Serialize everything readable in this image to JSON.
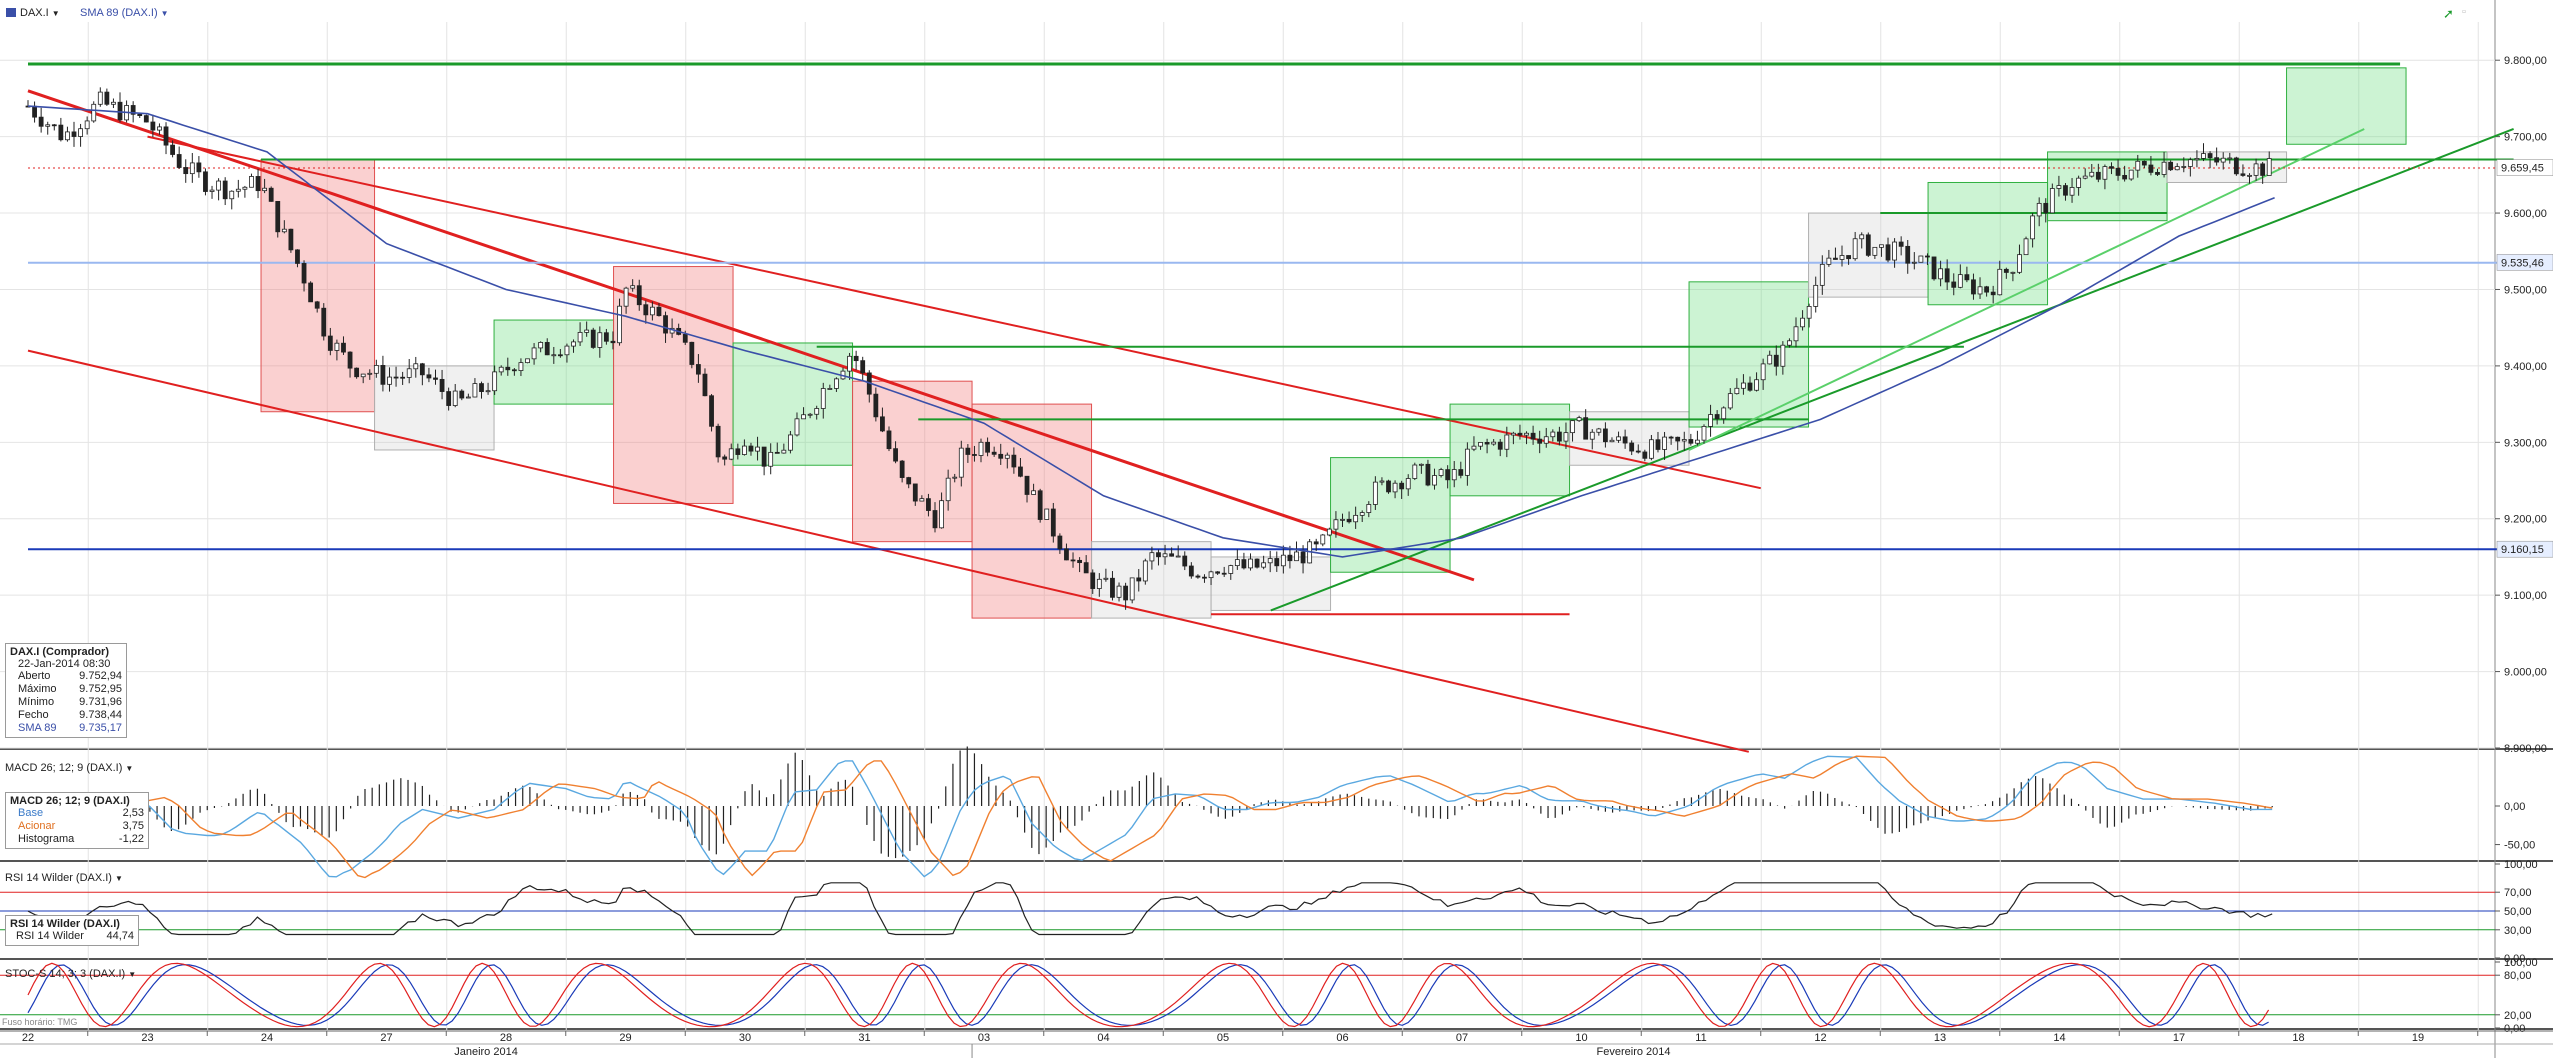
{
  "header": {
    "symbol": "DAX.I",
    "indicator": "SMA 89 (DAX.I)"
  },
  "panels": {
    "macd_title": "MACD 26; 12; 9 (DAX.I)",
    "rsi_title": "RSI 14 Wilder (DAX.I)",
    "stoch_title": "STOC-S 14; 3; 3 (DAX.I)"
  },
  "timezone_note": "Fuso horário: TMG",
  "info_main": {
    "title": "DAX.I (Comprador)",
    "date": "22-Jan-2014 08:30",
    "rows": [
      {
        "k": "Aberto",
        "v": "9.752,94"
      },
      {
        "k": "Máximo",
        "v": "9.752,95"
      },
      {
        "k": "Mínimo",
        "v": "9.731,96"
      },
      {
        "k": "Fecho",
        "v": "9.738,44"
      },
      {
        "k": "SMA 89",
        "v": "9.735,17"
      }
    ]
  },
  "info_macd": {
    "title": "MACD 26; 12; 9 (DAX.I)",
    "rows": [
      {
        "k": "Base",
        "v": "2,53"
      },
      {
        "k": "Acionar",
        "v": "3,75"
      },
      {
        "k": "Histograma",
        "v": "-1,22"
      }
    ]
  },
  "info_rsi": {
    "title": "RSI 14 Wilder (DAX.I)",
    "rows": [
      {
        "k": "RSI 14 Wilder",
        "v": "44,74"
      }
    ]
  },
  "colors": {
    "price_up": "#2a2a2a",
    "sma": "#3a4fa8",
    "red_line": "#e02020",
    "green_line": "#1a9a2a",
    "blue_line": "#1a3ab8",
    "light_blue": "#9ab8f0",
    "macd_base": "#5aa8e0",
    "macd_signal": "#f08030",
    "stoch_k": "#e02020",
    "stoch_d": "#1a3ab8"
  },
  "chart_data": {
    "type": "candlestick",
    "x_days": [
      "22",
      "23",
      "24",
      "27",
      "28",
      "29",
      "30",
      "31",
      "03",
      "04",
      "05",
      "06",
      "07",
      "10",
      "11",
      "12",
      "13",
      "14",
      "17",
      "18",
      "19"
    ],
    "x_months": [
      "Janeiro 2014",
      "Fevereiro 2014"
    ],
    "y_ticks": [
      "9.800,00",
      "9.700,00",
      "9.600,00",
      "9.500,00",
      "9.400,00",
      "9.300,00",
      "9.200,00",
      "9.100,00",
      "9.000,00",
      "8.900,00"
    ],
    "ylim": [
      8900,
      9850
    ],
    "last_price_label": "9.659,45",
    "level_labels": [
      "9.535,46",
      "9.160,15"
    ],
    "close_path": [
      [
        0,
        9740
      ],
      [
        0.3,
        9700
      ],
      [
        0.6,
        9745
      ],
      [
        0.9,
        9725
      ],
      [
        1.0,
        9720
      ],
      [
        1.3,
        9660
      ],
      [
        1.5,
        9640
      ],
      [
        1.7,
        9630
      ],
      [
        1.95,
        9640
      ],
      [
        2.05,
        9600
      ],
      [
        2.3,
        9520
      ],
      [
        2.5,
        9440
      ],
      [
        2.7,
        9400
      ],
      [
        3.0,
        9385
      ],
      [
        3.3,
        9390
      ],
      [
        3.6,
        9350
      ],
      [
        3.9,
        9380
      ],
      [
        4.1,
        9410
      ],
      [
        4.5,
        9430
      ],
      [
        4.9,
        9440
      ],
      [
        5.0,
        9500
      ],
      [
        5.3,
        9460
      ],
      [
        5.6,
        9400
      ],
      [
        5.8,
        9270
      ],
      [
        6.0,
        9310
      ],
      [
        6.2,
        9270
      ],
      [
        6.4,
        9310
      ],
      [
        6.7,
        9380
      ],
      [
        6.9,
        9420
      ],
      [
        7.05,
        9360
      ],
      [
        7.3,
        9250
      ],
      [
        7.6,
        9200
      ],
      [
        7.8,
        9280
      ],
      [
        8.0,
        9300
      ],
      [
        8.2,
        9290
      ],
      [
        8.4,
        9230
      ],
      [
        8.6,
        9180
      ],
      [
        8.8,
        9130
      ],
      [
        9.0,
        9110
      ],
      [
        9.2,
        9100
      ],
      [
        9.4,
        9150
      ],
      [
        9.6,
        9145
      ],
      [
        9.8,
        9130
      ],
      [
        10.0,
        9140
      ],
      [
        10.2,
        9135
      ],
      [
        10.4,
        9140
      ],
      [
        10.6,
        9150
      ],
      [
        10.8,
        9160
      ],
      [
        11.0,
        9200
      ],
      [
        11.3,
        9240
      ],
      [
        11.6,
        9260
      ],
      [
        11.9,
        9250
      ],
      [
        12.1,
        9290
      ],
      [
        12.5,
        9310
      ],
      [
        12.8,
        9310
      ],
      [
        13.0,
        9320
      ],
      [
        13.3,
        9300
      ],
      [
        13.6,
        9290
      ],
      [
        13.9,
        9300
      ],
      [
        14.1,
        9340
      ],
      [
        14.4,
        9380
      ],
      [
        14.7,
        9420
      ],
      [
        14.9,
        9490
      ],
      [
        15.05,
        9530
      ],
      [
        15.3,
        9560
      ],
      [
        15.6,
        9550
      ],
      [
        15.9,
        9530
      ],
      [
        16.1,
        9510
      ],
      [
        16.4,
        9500
      ],
      [
        16.6,
        9530
      ],
      [
        16.8,
        9600
      ],
      [
        17.1,
        9640
      ],
      [
        17.4,
        9650
      ],
      [
        17.7,
        9660
      ],
      [
        18.0,
        9670
      ],
      [
        18.3,
        9668
      ],
      [
        18.6,
        9660
      ],
      [
        18.8,
        9659
      ]
    ],
    "sma_path": [
      [
        0,
        9740
      ],
      [
        1.0,
        9730
      ],
      [
        2.0,
        9680
      ],
      [
        3.0,
        9560
      ],
      [
        4.0,
        9500
      ],
      [
        5.0,
        9465
      ],
      [
        6.0,
        9420
      ],
      [
        7.0,
        9380
      ],
      [
        8.0,
        9325
      ],
      [
        9.0,
        9230
      ],
      [
        10.0,
        9175
      ],
      [
        11.0,
        9150
      ],
      [
        12.0,
        9175
      ],
      [
        13.0,
        9230
      ],
      [
        14.0,
        9280
      ],
      [
        15.0,
        9330
      ],
      [
        16.0,
        9400
      ],
      [
        17.0,
        9480
      ],
      [
        18.0,
        9570
      ],
      [
        18.8,
        9620
      ]
    ],
    "boxes": [
      {
        "c": "red",
        "x0": 1.95,
        "x1": 2.9,
        "y0": 9340,
        "y1": 9670
      },
      {
        "c": "gray",
        "x0": 2.9,
        "x1": 3.9,
        "y0": 9290,
        "y1": 9400
      },
      {
        "c": "green",
        "x0": 3.9,
        "x1": 4.9,
        "y0": 9350,
        "y1": 9460
      },
      {
        "c": "red",
        "x0": 4.9,
        "x1": 5.9,
        "y0": 9220,
        "y1": 9530
      },
      {
        "c": "green",
        "x0": 5.9,
        "x1": 6.9,
        "y0": 9270,
        "y1": 9430
      },
      {
        "c": "red",
        "x0": 6.9,
        "x1": 7.9,
        "y0": 9170,
        "y1": 9380
      },
      {
        "c": "red",
        "x0": 7.9,
        "x1": 8.9,
        "y0": 9070,
        "y1": 9350
      },
      {
        "c": "gray",
        "x0": 8.9,
        "x1": 9.9,
        "y0": 9070,
        "y1": 9170
      },
      {
        "c": "gray",
        "x0": 9.9,
        "x1": 10.9,
        "y0": 9080,
        "y1": 9150
      },
      {
        "c": "green",
        "x0": 10.9,
        "x1": 11.9,
        "y0": 9130,
        "y1": 9280
      },
      {
        "c": "green",
        "x0": 11.9,
        "x1": 12.9,
        "y0": 9230,
        "y1": 9350
      },
      {
        "c": "gray",
        "x0": 12.9,
        "x1": 13.9,
        "y0": 9270,
        "y1": 9340
      },
      {
        "c": "green",
        "x0": 13.9,
        "x1": 14.9,
        "y0": 9320,
        "y1": 9510
      },
      {
        "c": "gray",
        "x0": 14.9,
        "x1": 15.9,
        "y0": 9490,
        "y1": 9600
      },
      {
        "c": "green",
        "x0": 15.9,
        "x1": 16.9,
        "y0": 9480,
        "y1": 9640
      },
      {
        "c": "green",
        "x0": 16.9,
        "x1": 17.9,
        "y0": 9590,
        "y1": 9680
      },
      {
        "c": "gray",
        "x0": 17.9,
        "x1": 18.9,
        "y0": 9640,
        "y1": 9680
      },
      {
        "c": "green",
        "x0": 18.9,
        "x1": 19.9,
        "y0": 9690,
        "y1": 9790
      }
    ],
    "lines": [
      {
        "c": "red",
        "w": 3,
        "x0": 0,
        "y0": 9760,
        "x1": 12.1,
        "y1": 9120
      },
      {
        "c": "red",
        "w": 2,
        "x0": 1.0,
        "y0": 9700,
        "x1": 14.5,
        "y1": 9240
      },
      {
        "c": "red",
        "w": 2,
        "x0": 0,
        "y0": 9420,
        "x1": 14.4,
        "y1": 8895
      },
      {
        "c": "red",
        "w": 2,
        "x0": 9.9,
        "y0": 9075,
        "x1": 12.9,
        "y1": 9075
      },
      {
        "c": "green",
        "w": 3,
        "x0": 0,
        "y0": 9795,
        "x1": 19.85,
        "y1": 9795
      },
      {
        "c": "green",
        "w": 2,
        "x0": 1.95,
        "y0": 9670,
        "x1": 20.8,
        "y1": 9670
      },
      {
        "c": "green",
        "w": 2,
        "x0": 6.6,
        "y0": 9425,
        "x1": 16.2,
        "y1": 9425
      },
      {
        "c": "green",
        "w": 2,
        "x0": 7.45,
        "y0": 9330,
        "x1": 14.9,
        "y1": 9330
      },
      {
        "c": "green",
        "w": 2,
        "x0": 15.5,
        "y0": 9600,
        "x1": 17.9,
        "y1": 9600
      },
      {
        "c": "green",
        "w": 2,
        "x0": 10.4,
        "y0": 9080,
        "x1": 20.8,
        "y1": 9710
      },
      {
        "c": "lightgreen",
        "w": 2,
        "x0": 13.9,
        "y0": 9290,
        "x1": 19.55,
        "y1": 9710
      },
      {
        "c": "blue",
        "w": 2,
        "x0": 0,
        "y0": 9160,
        "x1": 20.8,
        "y1": 9160
      },
      {
        "c": "lightblue",
        "w": 2,
        "x0": 0,
        "y0": 9535,
        "x1": 20.8,
        "y1": 9535
      },
      {
        "c": "reddot",
        "w": 1,
        "x0": 0,
        "y0": 9659,
        "x1": 20.8,
        "y1": 9659
      }
    ]
  }
}
